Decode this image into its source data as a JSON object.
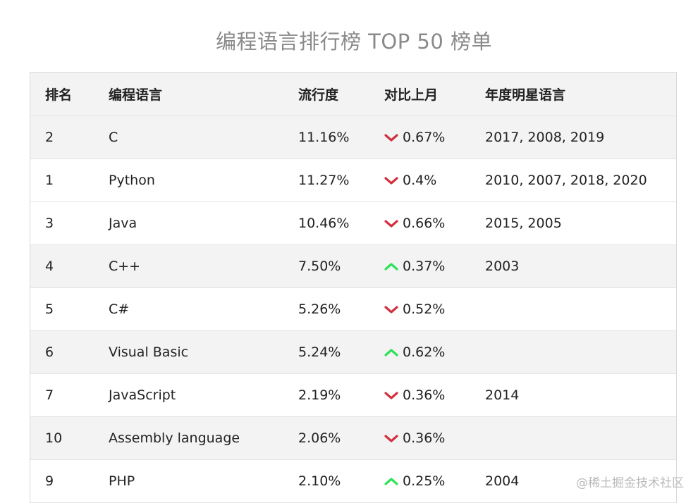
{
  "title": "编程语言排行榜 TOP 50 榜单",
  "columns": [
    "排名",
    "编程语言",
    "流行度",
    "对比上月",
    "年度明星语言"
  ],
  "colors": {
    "down": "#d0313f",
    "up": "#2ee05a"
  },
  "rows": [
    {
      "rank": "2",
      "language": "C",
      "popularity": "11.16%",
      "trend": "down",
      "change": "0.67%",
      "star_years": "2017, 2008, 2019"
    },
    {
      "rank": "1",
      "language": "Python",
      "popularity": "11.27%",
      "trend": "down",
      "change": "0.4%",
      "star_years": "2010, 2007, 2018, 2020"
    },
    {
      "rank": "3",
      "language": "Java",
      "popularity": "10.46%",
      "trend": "down",
      "change": "0.66%",
      "star_years": "2015, 2005"
    },
    {
      "rank": "4",
      "language": "C++",
      "popularity": "7.50%",
      "trend": "up",
      "change": "0.37%",
      "star_years": "2003"
    },
    {
      "rank": "5",
      "language": "C#",
      "popularity": "5.26%",
      "trend": "down",
      "change": "0.52%",
      "star_years": ""
    },
    {
      "rank": "6",
      "language": "Visual Basic",
      "popularity": "5.24%",
      "trend": "up",
      "change": "0.62%",
      "star_years": ""
    },
    {
      "rank": "7",
      "language": "JavaScript",
      "popularity": "2.19%",
      "trend": "down",
      "change": "0.36%",
      "star_years": "2014"
    },
    {
      "rank": "10",
      "language": "Assembly language",
      "popularity": "2.06%",
      "trend": "down",
      "change": "0.36%",
      "star_years": ""
    },
    {
      "rank": "9",
      "language": "PHP",
      "popularity": "2.10%",
      "trend": "up",
      "change": "0.25%",
      "star_years": "2004"
    }
  ],
  "watermark": "@稀土掘金技术社区"
}
